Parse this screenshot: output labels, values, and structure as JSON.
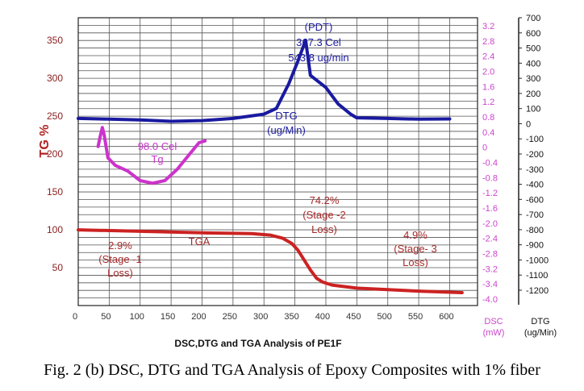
{
  "chart_data": {
    "type": "line",
    "title": "DSC,DTG and TGA  Analysis of PE1F",
    "caption": "Fig. 2 (b) DSC, DTG and TGA Analysis of Epoxy Composites with 1% fiber",
    "xlabel": "",
    "xlim": [
      0,
      645
    ],
    "xticks": [
      0,
      50,
      100,
      150,
      200,
      250,
      300,
      350,
      400,
      450,
      500,
      550,
      600
    ],
    "axes": {
      "tg": {
        "label": "TG %",
        "lim": [
          0,
          380
        ],
        "ticks": [
          50,
          100,
          150,
          200,
          250,
          300,
          350
        ],
        "color": "#a52a2a"
      },
      "dsc": {
        "label": "DSC",
        "unit": "(mW)",
        "lim": [
          -4.2,
          3.4
        ],
        "ticks": [
          "3.2",
          "2.8",
          "2.4",
          "2.0",
          "1.6",
          "1.2",
          "0.8",
          "0.4",
          "0",
          "-0.4",
          "-0.8",
          "-1.2",
          "-1.6",
          "-2.0",
          "-2.4",
          "-2.8",
          "-3.2",
          "-3.4",
          "-4.0"
        ],
        "color": "#cc44cc"
      },
      "dtg": {
        "label": "DTG",
        "unit": "(ug/Min)",
        "lim": [
          -1300,
          700
        ],
        "ticks": [
          700,
          600,
          500,
          400,
          300,
          200,
          100,
          0,
          -100,
          -200,
          -300,
          -400,
          -600,
          -700,
          -800,
          -900,
          -1000,
          -1100,
          -1200
        ],
        "color": "#000000"
      }
    },
    "series": [
      {
        "name": "DTG",
        "axis": "dtg",
        "color": "#1a1aa0",
        "x": [
          0,
          50,
          100,
          150,
          200,
          250,
          300,
          320,
          340,
          355,
          367.3,
          375,
          400,
          420,
          440,
          450,
          500,
          550,
          600
        ],
        "y": [
          0,
          -5,
          -10,
          -20,
          -15,
          0,
          30,
          70,
          240,
          400,
          543.8,
          300,
          215,
          100,
          30,
          5,
          0,
          -5,
          -3
        ]
      },
      {
        "name": "DSC",
        "axis": "dsc",
        "color": "#cc33cc",
        "x": [
          32,
          36,
          39,
          42,
          48,
          60,
          80,
          100,
          120,
          140,
          160,
          180,
          195,
          205
        ],
        "y": [
          0.0,
          0.3,
          0.5,
          0.3,
          -0.3,
          -0.5,
          -0.65,
          -0.9,
          -0.97,
          -0.9,
          -0.6,
          -0.2,
          0.1,
          0.15
        ]
      },
      {
        "name": "TGA",
        "axis": "tg",
        "color": "#cc2222",
        "x": [
          0,
          100,
          200,
          280,
          310,
          330,
          345,
          355,
          365,
          375,
          385,
          395,
          410,
          450,
          500,
          550,
          620
        ],
        "y": [
          100,
          98,
          96,
          95,
          93,
          89,
          82,
          73,
          60,
          47,
          36,
          31,
          27,
          23,
          21,
          19,
          17
        ]
      }
    ],
    "annotations": {
      "pdt": [
        "(PDT)",
        "367.3 Cel",
        "543.8 ug/min"
      ],
      "dtg_label": [
        "DTG",
        "(ug/Min)"
      ],
      "tg_label": [
        "98.0 Cel",
        "Tg"
      ],
      "tga_label": "TGA",
      "stage1": [
        "2.9%",
        "(Stage -1",
        "Loss)"
      ],
      "stage2": [
        "74.2%",
        "(Stage -2",
        "Loss)"
      ],
      "stage3": [
        "4.9%",
        "(Stage- 3",
        "Loss)"
      ]
    }
  }
}
